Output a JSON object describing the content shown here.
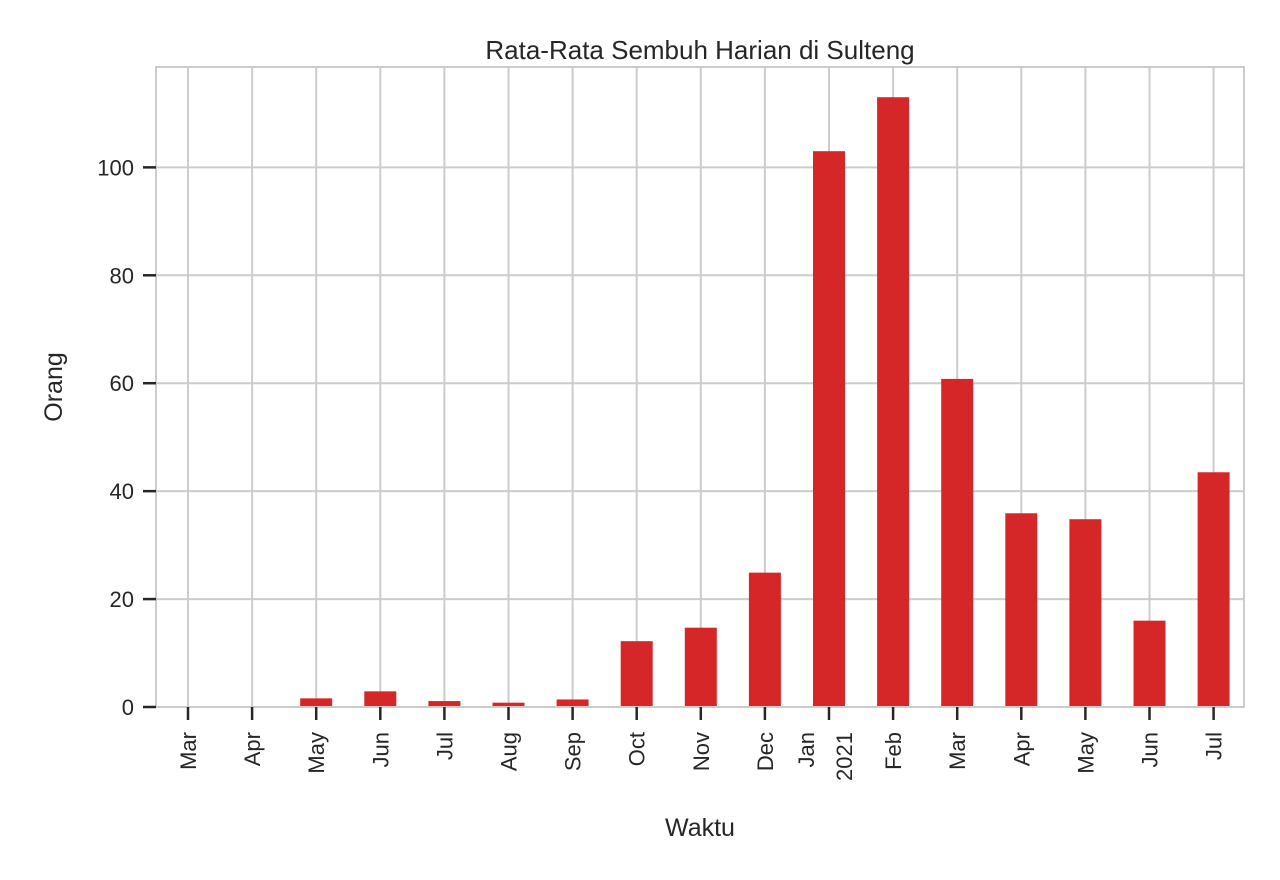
{
  "chart_data": {
    "type": "bar",
    "title": "Rata-Rata Sembuh Harian di Sulteng",
    "xlabel": "Waktu",
    "ylabel": "Orang",
    "categories": [
      {
        "label": "Mar",
        "sublabel": ""
      },
      {
        "label": "Apr",
        "sublabel": ""
      },
      {
        "label": "May",
        "sublabel": ""
      },
      {
        "label": "Jun",
        "sublabel": ""
      },
      {
        "label": "Jul",
        "sublabel": ""
      },
      {
        "label": "Aug",
        "sublabel": ""
      },
      {
        "label": "Sep",
        "sublabel": ""
      },
      {
        "label": "Oct",
        "sublabel": ""
      },
      {
        "label": "Nov",
        "sublabel": ""
      },
      {
        "label": "Dec",
        "sublabel": ""
      },
      {
        "label": "Jan",
        "sublabel": "2021"
      },
      {
        "label": "Feb",
        "sublabel": ""
      },
      {
        "label": "Mar",
        "sublabel": ""
      },
      {
        "label": "Apr",
        "sublabel": ""
      },
      {
        "label": "May",
        "sublabel": ""
      },
      {
        "label": "Jun",
        "sublabel": ""
      },
      {
        "label": "Jul",
        "sublabel": ""
      }
    ],
    "values": [
      0,
      0,
      1.6,
      2.9,
      1.1,
      0.8,
      1.4,
      12.2,
      14.7,
      24.9,
      103.0,
      113.0,
      60.8,
      35.9,
      34.8,
      16.0,
      43.5
    ],
    "yticks": [
      0,
      20,
      40,
      60,
      80,
      100
    ],
    "ylim": [
      0,
      118.6
    ],
    "grid": true,
    "bar_color": "#d62728"
  }
}
